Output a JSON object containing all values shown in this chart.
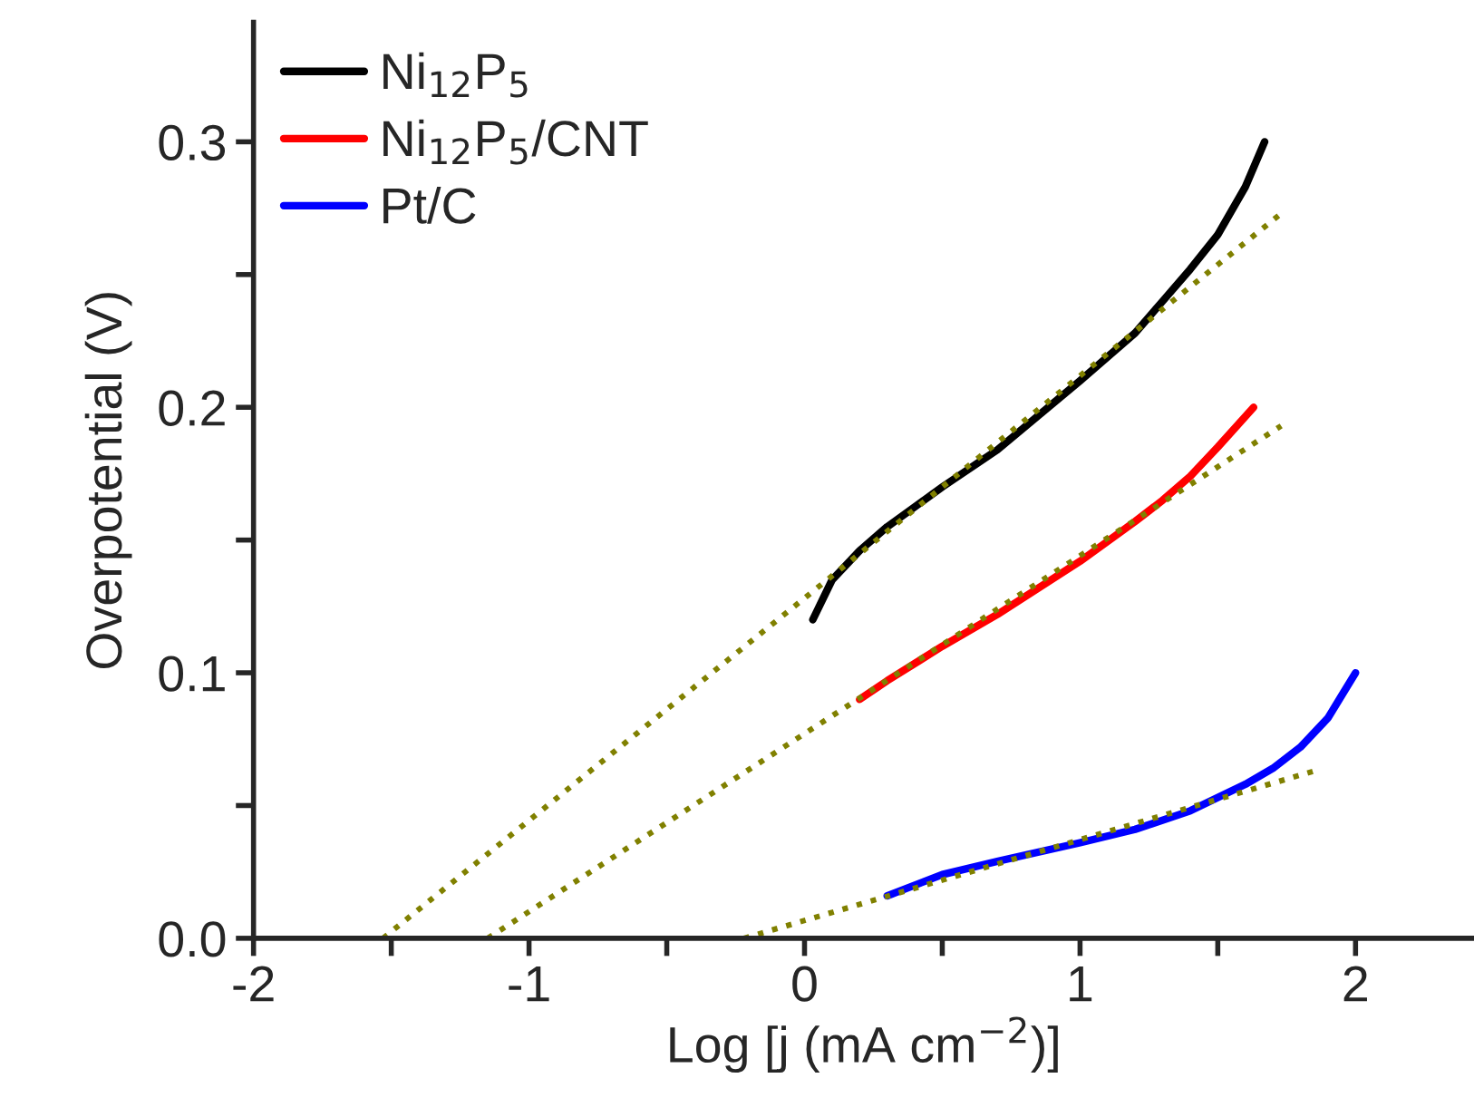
{
  "chart_data": {
    "type": "line",
    "xlabel": "Log [j (mA cm$^{−2}$)]",
    "ylabel": "Overpotential (V)",
    "xlim": [
      -2,
      2.43
    ],
    "ylim": [
      0,
      0.345
    ],
    "xticks": [
      -2,
      {
        "value": -1.5,
        "label": null
      },
      -1,
      {
        "value": -0.5,
        "label": null
      },
      0,
      {
        "value": 0.5,
        "label": null
      },
      1,
      {
        "value": 1.5,
        "label": null
      },
      2
    ],
    "yticks": [
      "0.0",
      {
        "value": 0.05,
        "label": null
      },
      0.1,
      {
        "value": 0.15,
        "label": null
      },
      0.2,
      {
        "value": 0.25,
        "label": null
      },
      0.3
    ],
    "legend": "top left",
    "grid": false,
    "series": [
      {
        "name": "Ni$_{12}$P$_{5}$",
        "color": "#000000",
        "line_style": "solid",
        "x": [
          0.03,
          0.1,
          0.2,
          0.3,
          0.5,
          0.7,
          1.0,
          1.2,
          1.3,
          1.4,
          1.5,
          1.6,
          1.67
        ],
        "values": [
          0.12,
          0.135,
          0.146,
          0.155,
          0.17,
          0.184,
          0.21,
          0.228,
          0.24,
          0.252,
          0.265,
          0.283,
          0.3
        ]
      },
      {
        "name": "Ni$_{12}$P$_{5}$/CNT",
        "color": "#ff0000",
        "line_style": "solid",
        "x": [
          0.2,
          0.3,
          0.5,
          0.7,
          1.0,
          1.2,
          1.3,
          1.4,
          1.5,
          1.63
        ],
        "values": [
          0.09,
          0.097,
          0.11,
          0.122,
          0.142,
          0.157,
          0.165,
          0.174,
          0.185,
          0.2
        ]
      },
      {
        "name": "Pt/C",
        "color": "#0000ff",
        "line_style": "solid",
        "x": [
          0.3,
          0.5,
          0.7,
          1.0,
          1.2,
          1.4,
          1.6,
          1.7,
          1.8,
          1.9,
          2.0
        ],
        "values": [
          0.016,
          0.024,
          0.029,
          0.036,
          0.041,
          0.048,
          0.058,
          0.064,
          0.072,
          0.083,
          0.1
        ]
      },
      {
        "color": "#808000",
        "line_style": "dotted",
        "x": [
          -1.53,
          1.73
        ],
        "values": [
          0,
          0.273
        ]
      },
      {
        "color": "#808000",
        "line_style": "dotted",
        "x": [
          -1.15,
          1.73
        ],
        "values": [
          0,
          0.193
        ]
      },
      {
        "color": "#808000",
        "line_style": "dotted",
        "x": [
          -0.22,
          1.85
        ],
        "values": [
          0,
          0.063
        ]
      }
    ]
  }
}
